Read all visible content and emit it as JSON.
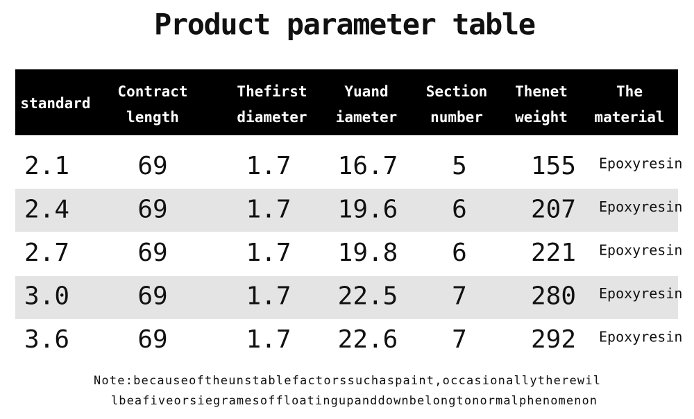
{
  "title": "Product parameter table",
  "table": {
    "headers": [
      [
        "standard"
      ],
      [
        "Contract",
        "length"
      ],
      [
        "Thefirst",
        "diameter"
      ],
      [
        "Yuand",
        "iameter"
      ],
      [
        "Section",
        "number"
      ],
      [
        "Thenet",
        "weight"
      ],
      [
        "The",
        "material"
      ]
    ],
    "rows": [
      [
        "2.1",
        "69",
        "1.7",
        "16.7",
        "5",
        "155",
        "Epoxyresin"
      ],
      [
        "2.4",
        "69",
        "1.7",
        "19.6",
        "6",
        "207",
        "Epoxyresin"
      ],
      [
        "2.7",
        "69",
        "1.7",
        "19.8",
        "6",
        "221",
        "Epoxyresin"
      ],
      [
        "3.0",
        "69",
        "1.7",
        "22.5",
        "7",
        "280",
        "Epoxyresin"
      ],
      [
        "3.6",
        "69",
        "1.7",
        "22.6",
        "7",
        "292",
        "Epoxyresin"
      ]
    ]
  },
  "note": [
    "Note:becauseoftheunstablefactorssuchaspaint,occasionallytherewil",
    "lbeafiveorsiegramesoffloatingupanddownbelongtonormalphenomenon"
  ]
}
